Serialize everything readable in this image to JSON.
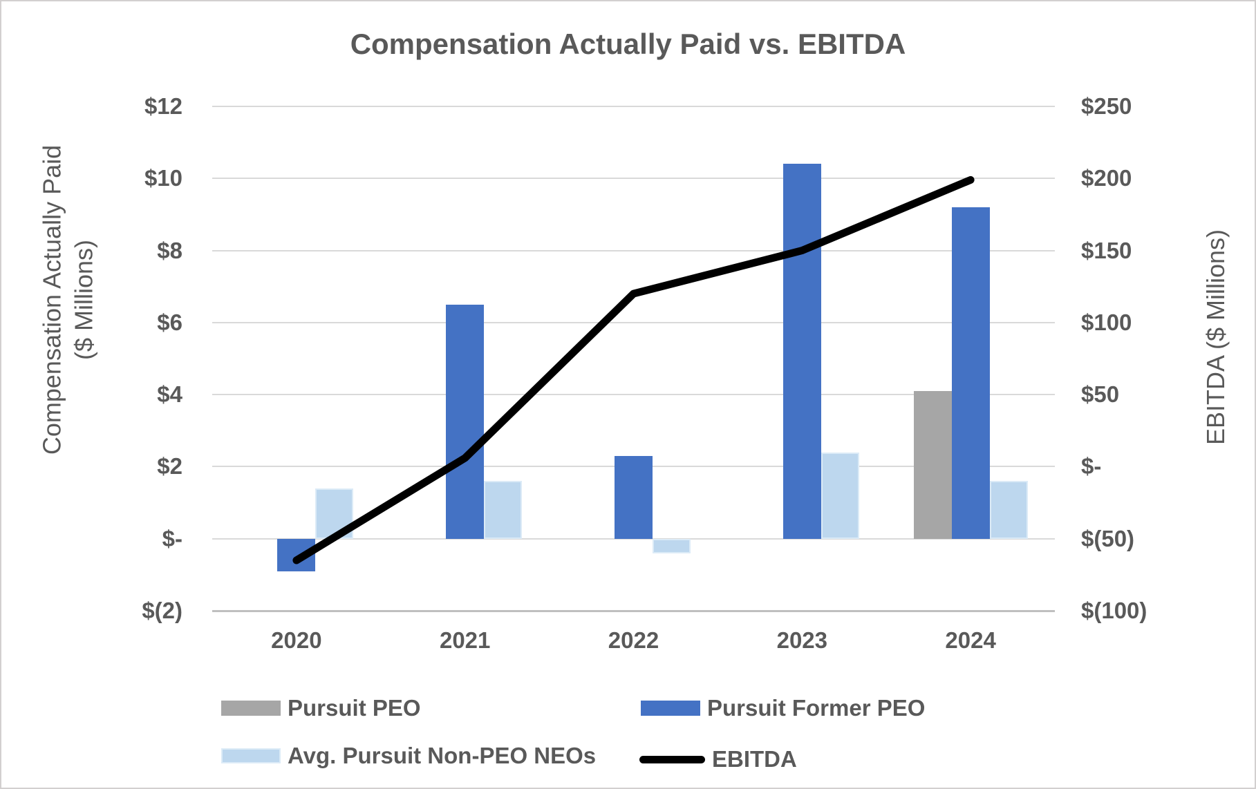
{
  "title": "Compensation Actually Paid vs. EBITDA",
  "left_axis": {
    "title_line1": "Compensation Actually Paid",
    "title_line2": "($ Millions)",
    "max": 12,
    "min": -2,
    "tick_values": [
      12,
      10,
      8,
      6,
      4,
      2,
      0,
      -2
    ],
    "tick_labels": [
      "$12",
      "$10",
      "$8",
      "$6",
      "$4",
      "$2",
      "$-",
      "$(2)"
    ]
  },
  "right_axis": {
    "title": "EBITDA ($ Millions)",
    "max": 250,
    "min": -100,
    "tick_values": [
      250,
      200,
      150,
      100,
      50,
      0,
      -50,
      -100
    ],
    "tick_labels": [
      "$250",
      "$200",
      "$150",
      "$100",
      "$50",
      "$-",
      "$(50)",
      "$(100)"
    ]
  },
  "chart_data": {
    "type": "bar",
    "subtype": "grouped bars with overlaid line on secondary axis",
    "title": "Compensation Actually Paid vs. EBITDA",
    "categories": [
      "2020",
      "2021",
      "2022",
      "2023",
      "2024"
    ],
    "grid": true,
    "legend_position": "bottom",
    "ylabel_left": "Compensation Actually Paid ($ Millions)",
    "ylabel_right": "EBITDA ($ Millions)",
    "ylim_left": [
      -2,
      12
    ],
    "ylim_right": [
      -100,
      250
    ],
    "series": [
      {
        "name": "Pursuit PEO",
        "type": "bar",
        "axis": "left",
        "color": "#a6a6a6",
        "values": [
          null,
          null,
          null,
          null,
          4.1
        ]
      },
      {
        "name": "Pursuit Former PEO",
        "type": "bar",
        "axis": "left",
        "color": "#4472c4",
        "values": [
          -0.9,
          6.5,
          2.3,
          10.4,
          9.2
        ]
      },
      {
        "name": "Avg. Pursuit Non-PEO NEOs",
        "type": "bar",
        "axis": "left",
        "color": "#bdd7ee",
        "values": [
          1.4,
          1.6,
          -0.4,
          2.4,
          1.6
        ]
      },
      {
        "name": "EBITDA",
        "type": "line",
        "axis": "right",
        "color": "#000000",
        "values": [
          -65,
          6,
          120,
          150,
          199
        ]
      }
    ]
  },
  "colors": {
    "gray_bar": "#a6a6a6",
    "blue_bar": "#4472c4",
    "light_blue_bar": "#bdd7ee",
    "line": "#000000",
    "gridline": "#d9d9d9",
    "text": "#595959"
  }
}
